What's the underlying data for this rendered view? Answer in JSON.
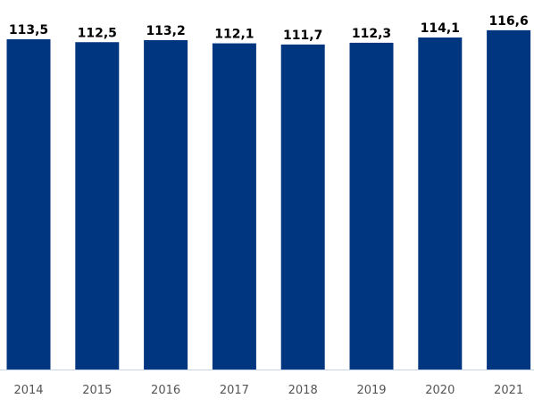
{
  "chart_data": {
    "type": "bar",
    "categories": [
      "2014",
      "2015",
      "2016",
      "2017",
      "2018",
      "2019",
      "2020",
      "2021"
    ],
    "values": [
      113.5,
      112.5,
      113.2,
      112.1,
      111.7,
      112.3,
      114.1,
      116.6
    ],
    "value_labels": [
      "113,5",
      "112,5",
      "113,2",
      "112,1",
      "111,7",
      "112,3",
      "114,1",
      "116,6"
    ],
    "title": "",
    "xlabel": "",
    "ylabel": "",
    "ylim": [
      0,
      119
    ],
    "grid": false,
    "legend": "none",
    "bar_color": "#003580",
    "axis_color": "#c8d4ec"
  }
}
